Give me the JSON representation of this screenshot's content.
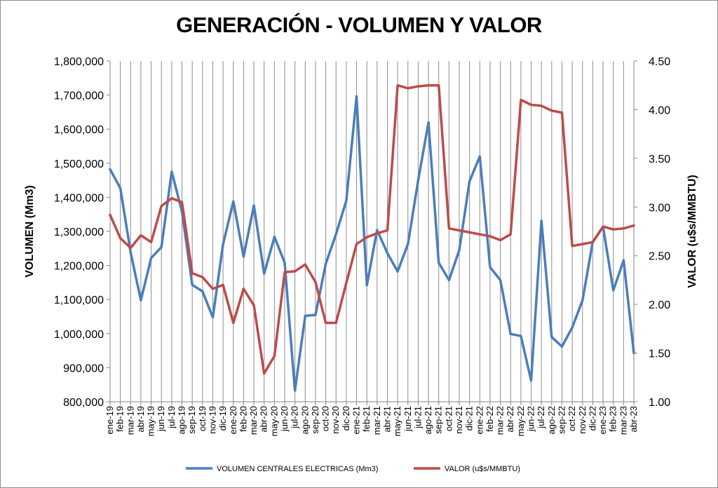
{
  "chart_data": {
    "type": "line",
    "title": "GENERACIÓN - VOLUMEN Y VALOR",
    "ylabel": "VOLUMEN (Mm3)",
    "y2label": "VALOR (u$s/MMBTU)",
    "ylim": [
      800000,
      1800000
    ],
    "y2lim": [
      1.0,
      4.5
    ],
    "yticks": [
      "800,000",
      "900,000",
      "1,000,000",
      "1,100,000",
      "1,200,000",
      "1,300,000",
      "1,400,000",
      "1,500,000",
      "1,600,000",
      "1,700,000",
      "1,800,000"
    ],
    "y2ticks": [
      "1.00",
      "1.50",
      "2.00",
      "2.50",
      "3.00",
      "3.50",
      "4.00",
      "4.50"
    ],
    "grid": "vertical",
    "legend": "bottom",
    "x": [
      "ene-19",
      "feb-19",
      "mar-19",
      "abr-19",
      "may-19",
      "jun-19",
      "jul-19",
      "ago-19",
      "sep-19",
      "oct-19",
      "nov-19",
      "dic-19",
      "ene-20",
      "feb-20",
      "mar-20",
      "abr-20",
      "may-20",
      "jun-20",
      "jul-20",
      "ago-20",
      "sep-20",
      "oct-20",
      "nov-20",
      "dic-20",
      "ene-21",
      "feb-21",
      "mar-21",
      "abr-21",
      "may-21",
      "jun-21",
      "jul-21",
      "ago-21",
      "sep-21",
      "oct-21",
      "nov-21",
      "dic-21",
      "ene-22",
      "feb-22",
      "mar-22",
      "abr-22",
      "may-22",
      "jun-22",
      "jul-22",
      "ago-22",
      "sep-22",
      "oct-22",
      "nov-22",
      "dic-22",
      "ene-23",
      "feb-23",
      "mar-23",
      "abr-23"
    ],
    "series": [
      {
        "name": "VOLUMEN CENTRALES ELECTRICAS (Mm3)",
        "axis": "left",
        "color": "#4a7ebb",
        "values": [
          1482000,
          1427000,
          1238000,
          1098000,
          1222000,
          1254000,
          1475000,
          1358000,
          1143000,
          1124000,
          1048000,
          1262000,
          1388000,
          1226000,
          1376000,
          1176000,
          1284000,
          1208000,
          833000,
          1052000,
          1055000,
          1205000,
          1292000,
          1390000,
          1696000,
          1142000,
          1304000,
          1236000,
          1182000,
          1263000,
          1450000,
          1620000,
          1208000,
          1157000,
          1245000,
          1447000,
          1520000,
          1195000,
          1157000,
          999000,
          993000,
          862000,
          1331000,
          990000,
          962000,
          1018000,
          1098000,
          1270000,
          1313000,
          1127000,
          1215000,
          943000
        ]
      },
      {
        "name": "VALOR (u$s/MMBTU)",
        "axis": "right",
        "color": "#be4b48",
        "values": [
          2.92,
          2.68,
          2.58,
          2.71,
          2.64,
          3.01,
          3.09,
          3.05,
          2.32,
          2.28,
          2.16,
          2.2,
          1.81,
          2.16,
          1.99,
          1.29,
          1.47,
          2.33,
          2.34,
          2.41,
          2.23,
          1.81,
          1.81,
          2.22,
          2.62,
          2.69,
          2.73,
          2.76,
          4.25,
          4.22,
          4.24,
          4.25,
          4.25,
          2.78,
          2.76,
          2.74,
          2.72,
          2.7,
          2.66,
          2.72,
          4.1,
          4.05,
          4.04,
          3.99,
          3.97,
          2.6,
          2.62,
          2.64,
          2.8,
          2.77,
          2.78,
          2.81
        ]
      }
    ]
  }
}
